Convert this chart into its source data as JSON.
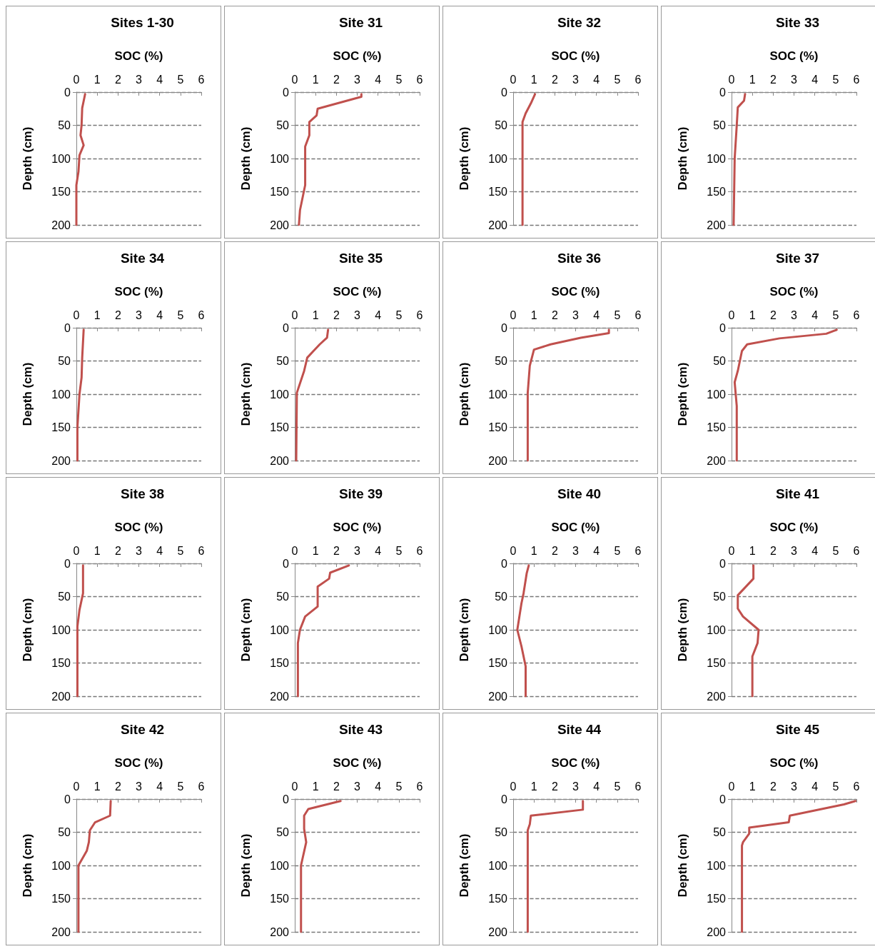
{
  "chart_data": [
    {
      "type": "line",
      "title": "Sites 1-30",
      "xlabel": "SOC (%)",
      "ylabel": "Depth (cm)",
      "color": "#c0504d",
      "marker": "none",
      "line_style": "solid",
      "grid": "y",
      "xlim": [
        0,
        6
      ],
      "xticks": [
        0,
        1,
        2,
        3,
        4,
        5,
        6
      ],
      "ylim": [
        200,
        0
      ],
      "yticks": [
        0,
        50,
        100,
        150,
        200
      ],
      "x": [
        0.42,
        0.28,
        0.25,
        0.2,
        0.35,
        0.15,
        0.1,
        0,
        0
      ],
      "values": [
        3,
        24,
        50,
        65,
        80,
        95,
        120,
        140,
        200
      ]
    },
    {
      "type": "line",
      "title": "Site 31",
      "xlabel": "SOC (%)",
      "ylabel": "Depth (cm)",
      "color": "#c0504d",
      "marker": "none",
      "line_style": "solid",
      "grid": "y",
      "xlim": [
        0,
        6
      ],
      "xticks": [
        0,
        1,
        2,
        3,
        4,
        5,
        6
      ],
      "ylim": [
        200,
        0
      ],
      "yticks": [
        0,
        50,
        100,
        150,
        200
      ],
      "x": [
        3.2,
        3.2,
        1.1,
        1.05,
        0.7,
        0.7,
        0.5,
        0.5,
        0.25,
        0.2
      ],
      "values": [
        3,
        7,
        25,
        35,
        45,
        65,
        82,
        140,
        178,
        200
      ]
    },
    {
      "type": "line",
      "title": "Site 32",
      "xlabel": "SOC (%)",
      "ylabel": "Depth (cm)",
      "color": "#c0504d",
      "marker": "none",
      "line_style": "solid",
      "grid": "y",
      "xlim": [
        0,
        6
      ],
      "xticks": [
        0,
        1,
        2,
        3,
        4,
        5,
        6
      ],
      "ylim": [
        200,
        0
      ],
      "yticks": [
        0,
        50,
        100,
        150,
        200
      ],
      "x": [
        1.05,
        0.85,
        0.6,
        0.45,
        0.45
      ],
      "values": [
        3,
        17,
        32,
        45,
        200
      ]
    },
    {
      "type": "line",
      "title": "Site 33",
      "xlabel": "SOC (%)",
      "ylabel": "Depth (cm)",
      "color": "#c0504d",
      "marker": "none",
      "line_style": "solid",
      "grid": "y",
      "xlim": [
        0,
        6
      ],
      "xticks": [
        0,
        1,
        2,
        3,
        4,
        5,
        6
      ],
      "ylim": [
        200,
        0
      ],
      "yticks": [
        0,
        50,
        100,
        150,
        200
      ],
      "x": [
        0.65,
        0.6,
        0.3,
        0.25,
        0.15,
        0.1
      ],
      "values": [
        3,
        13,
        23,
        50,
        100,
        200
      ]
    },
    {
      "type": "line",
      "title": "Site 34",
      "xlabel": "SOC (%)",
      "ylabel": "Depth (cm)",
      "color": "#c0504d",
      "marker": "none",
      "line_style": "solid",
      "grid": "y",
      "xlim": [
        0,
        6
      ],
      "xticks": [
        0,
        1,
        2,
        3,
        4,
        5,
        6
      ],
      "ylim": [
        200,
        0
      ],
      "yticks": [
        0,
        50,
        100,
        150,
        200
      ],
      "x": [
        0.35,
        0.28,
        0.25,
        0.15,
        0.05,
        0.05
      ],
      "values": [
        3,
        45,
        75,
        100,
        150,
        200
      ]
    },
    {
      "type": "line",
      "title": "Site 35",
      "xlabel": "SOC (%)",
      "ylabel": "Depth (cm)",
      "color": "#c0504d",
      "marker": "none",
      "line_style": "solid",
      "grid": "y",
      "xlim": [
        0,
        6
      ],
      "xticks": [
        0,
        1,
        2,
        3,
        4,
        5,
        6
      ],
      "ylim": [
        200,
        0
      ],
      "yticks": [
        0,
        50,
        100,
        150,
        200
      ],
      "x": [
        1.6,
        1.55,
        1.2,
        0.9,
        0.6,
        0.45,
        0.1,
        0.07
      ],
      "values": [
        3,
        15,
        25,
        35,
        45,
        65,
        98,
        200
      ]
    },
    {
      "type": "line",
      "title": "Site 36",
      "xlabel": "SOC (%)",
      "ylabel": "Depth (cm)",
      "color": "#c0504d",
      "marker": "none",
      "line_style": "solid",
      "grid": "y",
      "xlim": [
        0,
        6
      ],
      "xticks": [
        0,
        1,
        2,
        3,
        4,
        5,
        6
      ],
      "ylim": [
        200,
        0
      ],
      "yticks": [
        0,
        50,
        100,
        150,
        200
      ],
      "x": [
        4.6,
        4.6,
        3.25,
        1.8,
        1.0,
        0.9,
        0.8,
        0.7,
        0.7
      ],
      "values": [
        3,
        8,
        15,
        25,
        33,
        45,
        57,
        98,
        200
      ]
    },
    {
      "type": "line",
      "title": "Site 37",
      "xlabel": "SOC (%)",
      "ylabel": "Depth (cm)",
      "color": "#c0504d",
      "marker": "none",
      "line_style": "solid",
      "grid": "y",
      "xlim": [
        0,
        6
      ],
      "xticks": [
        0,
        1,
        2,
        3,
        4,
        5,
        6
      ],
      "ylim": [
        200,
        0
      ],
      "yticks": [
        0,
        50,
        100,
        150,
        200
      ],
      "x": [
        5.05,
        4.55,
        2.3,
        0.75,
        0.5,
        0.3,
        0.15,
        0.25,
        0.25
      ],
      "values": [
        3,
        9,
        16,
        25,
        35,
        65,
        82,
        118,
        200
      ]
    },
    {
      "type": "line",
      "title": "Site 38",
      "xlabel": "SOC (%)",
      "ylabel": "Depth (cm)",
      "color": "#c0504d",
      "marker": "none",
      "line_style": "solid",
      "grid": "y",
      "xlim": [
        0,
        6
      ],
      "xticks": [
        0,
        1,
        2,
        3,
        4,
        5,
        6
      ],
      "ylim": [
        200,
        0
      ],
      "yticks": [
        0,
        50,
        100,
        150,
        200
      ],
      "x": [
        0.32,
        0.32,
        0.15,
        0.05,
        0.05
      ],
      "values": [
        3,
        45,
        70,
        95,
        200
      ]
    },
    {
      "type": "line",
      "title": "Site 39",
      "xlabel": "SOC (%)",
      "ylabel": "Depth (cm)",
      "color": "#c0504d",
      "marker": "none",
      "line_style": "solid",
      "grid": "y",
      "xlim": [
        0,
        6
      ],
      "xticks": [
        0,
        1,
        2,
        3,
        4,
        5,
        6
      ],
      "ylim": [
        200,
        0
      ],
      "yticks": [
        0,
        50,
        100,
        150,
        200
      ],
      "x": [
        2.6,
        1.7,
        1.65,
        1.1,
        1.1,
        0.5,
        0.25,
        0.15,
        0.15
      ],
      "values": [
        3,
        14,
        23,
        35,
        65,
        80,
        100,
        120,
        200
      ]
    },
    {
      "type": "line",
      "title": "Site 40",
      "xlabel": "SOC (%)",
      "ylabel": "Depth (cm)",
      "color": "#c0504d",
      "marker": "none",
      "line_style": "solid",
      "grid": "y",
      "xlim": [
        0,
        6
      ],
      "xticks": [
        0,
        1,
        2,
        3,
        4,
        5,
        6
      ],
      "ylim": [
        200,
        0
      ],
      "yticks": [
        0,
        50,
        100,
        150,
        200
      ],
      "x": [
        0.75,
        0.65,
        0.5,
        0.4,
        0.2,
        0.4,
        0.6,
        0.6
      ],
      "values": [
        3,
        15,
        45,
        60,
        100,
        125,
        155,
        200
      ]
    },
    {
      "type": "line",
      "title": "Site 41",
      "xlabel": "SOC (%)",
      "ylabel": "Depth (cm)",
      "color": "#c0504d",
      "marker": "none",
      "line_style": "solid",
      "grid": "y",
      "xlim": [
        0,
        6
      ],
      "xticks": [
        0,
        1,
        2,
        3,
        4,
        5,
        6
      ],
      "ylim": [
        200,
        0
      ],
      "yticks": [
        0,
        50,
        100,
        150,
        200
      ],
      "x": [
        1.05,
        1.05,
        0.3,
        0.3,
        0.55,
        1.3,
        1.25,
        1.0,
        1.0
      ],
      "values": [
        3,
        23,
        48,
        68,
        80,
        100,
        120,
        140,
        200
      ]
    },
    {
      "type": "line",
      "title": "Site 42",
      "xlabel": "SOC (%)",
      "ylabel": "Depth (cm)",
      "color": "#c0504d",
      "marker": "none",
      "line_style": "solid",
      "grid": "y",
      "xlim": [
        0,
        6
      ],
      "xticks": [
        0,
        1,
        2,
        3,
        4,
        5,
        6
      ],
      "ylim": [
        200,
        0
      ],
      "yticks": [
        0,
        50,
        100,
        150,
        200
      ],
      "x": [
        1.65,
        1.62,
        0.9,
        0.65,
        0.6,
        0.5,
        0.1,
        0.1
      ],
      "values": [
        3,
        25,
        35,
        47,
        65,
        78,
        100,
        200
      ]
    },
    {
      "type": "line",
      "title": "Site 43",
      "xlabel": "SOC (%)",
      "ylabel": "Depth (cm)",
      "color": "#c0504d",
      "marker": "none",
      "line_style": "solid",
      "grid": "y",
      "xlim": [
        0,
        6
      ],
      "xticks": [
        0,
        1,
        2,
        3,
        4,
        5,
        6
      ],
      "ylim": [
        200,
        0
      ],
      "yticks": [
        0,
        50,
        100,
        150,
        200
      ],
      "x": [
        2.2,
        0.65,
        0.45,
        0.45,
        0.55,
        0.3,
        0.3
      ],
      "values": [
        3,
        15,
        25,
        45,
        65,
        100,
        200
      ]
    },
    {
      "type": "line",
      "title": "Site 44",
      "xlabel": "SOC (%)",
      "ylabel": "Depth (cm)",
      "color": "#c0504d",
      "marker": "none",
      "line_style": "solid",
      "grid": "y",
      "xlim": [
        0,
        6
      ],
      "xticks": [
        0,
        1,
        2,
        3,
        4,
        5,
        6
      ],
      "ylim": [
        200,
        0
      ],
      "yticks": [
        0,
        50,
        100,
        150,
        200
      ],
      "x": [
        3.35,
        3.35,
        0.85,
        0.8,
        0.7,
        0.7
      ],
      "values": [
        3,
        16,
        25,
        38,
        47,
        200
      ]
    },
    {
      "type": "line",
      "title": "Site 45",
      "xlabel": "SOC (%)",
      "ylabel": "Depth (cm)",
      "color": "#c0504d",
      "marker": "none",
      "line_style": "solid",
      "grid": "y",
      "xlim": [
        0,
        6
      ],
      "xticks": [
        0,
        1,
        2,
        3,
        4,
        5,
        6
      ],
      "ylim": [
        200,
        0
      ],
      "yticks": [
        0,
        50,
        100,
        150,
        200
      ],
      "x": [
        5.95,
        5.4,
        2.8,
        2.75,
        0.85,
        0.85,
        0.55,
        0.5,
        0.5
      ],
      "values": [
        3,
        8,
        25,
        35,
        43,
        52,
        65,
        70,
        200
      ]
    }
  ]
}
